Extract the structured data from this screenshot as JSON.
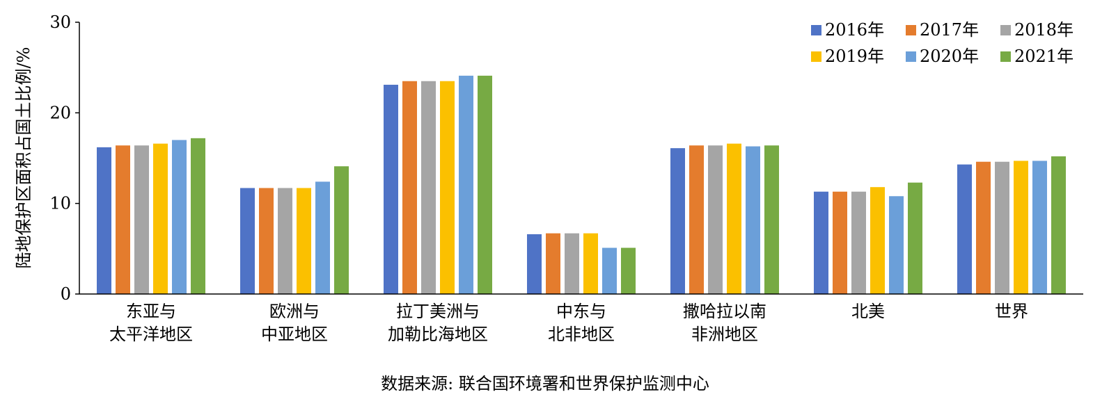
{
  "chart_data": {
    "type": "bar",
    "title": "",
    "xlabel": "",
    "ylabel": "陆地保护区面积占国土比例/%",
    "ylim": [
      0,
      30
    ],
    "yticks": [
      0,
      10,
      20,
      30
    ],
    "grid": false,
    "legend_position": "top-right",
    "categories": [
      [
        "东亚与",
        "太平洋地区"
      ],
      [
        "欧洲与",
        "中亚地区"
      ],
      [
        "拉丁美洲与",
        "加勒比海地区"
      ],
      [
        "中东与",
        "北非地区"
      ],
      [
        "撒哈拉以南",
        "非洲地区"
      ],
      [
        "北美"
      ],
      [
        "世界"
      ]
    ],
    "series": [
      {
        "name": "2016年",
        "color": "#4f73c6",
        "values": [
          16.2,
          11.7,
          23.1,
          6.6,
          16.1,
          11.3,
          14.3
        ]
      },
      {
        "name": "2017年",
        "color": "#e47c2d",
        "values": [
          16.4,
          11.7,
          23.5,
          6.7,
          16.4,
          11.3,
          14.6
        ]
      },
      {
        "name": "2018年",
        "color": "#a5a5a5",
        "values": [
          16.4,
          11.7,
          23.5,
          6.7,
          16.4,
          11.3,
          14.6
        ]
      },
      {
        "name": "2019年",
        "color": "#fbc000",
        "values": [
          16.6,
          11.7,
          23.5,
          6.7,
          16.6,
          11.8,
          14.7
        ]
      },
      {
        "name": "2020年",
        "color": "#6b9fd9",
        "values": [
          17.0,
          12.4,
          24.1,
          5.1,
          16.3,
          10.8,
          14.7
        ]
      },
      {
        "name": "2021年",
        "color": "#77aa44",
        "values": [
          17.2,
          14.1,
          24.1,
          5.1,
          16.4,
          12.3,
          15.2
        ]
      }
    ]
  },
  "source_note": "数据来源: 联合国环境署和世界保护监测中心"
}
